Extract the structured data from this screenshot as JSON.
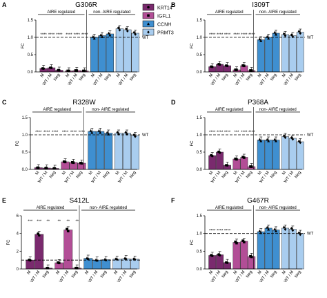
{
  "legend": {
    "items": [
      {
        "label": "KRT14",
        "color": "#7a2a6e",
        "marker": "circle"
      },
      {
        "label": "IGFL1",
        "color": "#b24e96",
        "marker": "square"
      },
      {
        "label": "CCNH",
        "color": "#3f8fd0",
        "marker": "triangle"
      },
      {
        "label": "PRMT3",
        "color": "#a9cdef",
        "marker": "diamond"
      }
    ]
  },
  "chart_data": [
    {
      "panel": "A",
      "title": "G306R",
      "type": "bar",
      "ylabel": "FC",
      "ylim": [
        0,
        1.5
      ],
      "yticks": [
        "0.0",
        "0.5",
        "1.0",
        "1.5"
      ],
      "categories": [
        "M",
        "WT / M",
        "Neg"
      ],
      "ref_line": {
        "y": 1.0,
        "label": "WT"
      },
      "groups": [
        {
          "label": "AIRE regulated",
          "genes": [
            "KRT14",
            "IGFL1"
          ]
        },
        {
          "label": "non- AIRE regulated",
          "genes": [
            "CCNH",
            "PRMT3"
          ]
        }
      ],
      "series": [
        {
          "name": "KRT14",
          "values": [
            0.1,
            0.12,
            0.05
          ]
        },
        {
          "name": "IGFL1",
          "values": [
            0.03,
            0.04,
            0.03
          ]
        },
        {
          "name": "CCNH",
          "values": [
            1.0,
            1.05,
            1.1
          ]
        },
        {
          "name": "PRMT3",
          "values": [
            1.25,
            1.22,
            1.12
          ]
        }
      ],
      "sig": [
        {
          "g": 0,
          "c": 0,
          "text": "****"
        },
        {
          "g": 0,
          "c": 1,
          "text": "****"
        },
        {
          "g": 0,
          "c": 2,
          "text": "****"
        },
        {
          "g": 1,
          "c": 0,
          "text": "****"
        },
        {
          "g": 1,
          "c": 1,
          "text": "****"
        },
        {
          "g": 1,
          "c": 2,
          "text": "****"
        },
        {
          "g": 3,
          "c": 0,
          "text": "*"
        }
      ]
    },
    {
      "panel": "B",
      "title": "I309T",
      "type": "bar",
      "ylabel": "FC",
      "ylim": [
        0,
        1.5
      ],
      "yticks": [
        "0.0",
        "0.5",
        "1.0",
        "1.5"
      ],
      "categories": [
        "M",
        "WT / M",
        "Neg"
      ],
      "ref_line": {
        "y": 1.0,
        "label": "WT"
      },
      "groups": [
        {
          "label": "AIRE regulated",
          "genes": [
            "KRT14",
            "IGFL1"
          ]
        },
        {
          "label": "non- AIRE regulated",
          "genes": [
            "CCNH",
            "PRMT3"
          ]
        }
      ],
      "series": [
        {
          "name": "KRT14",
          "values": [
            0.15,
            0.22,
            0.18
          ]
        },
        {
          "name": "IGFL1",
          "values": [
            0.06,
            0.18,
            0.04
          ]
        },
        {
          "name": "CCNH",
          "values": [
            0.93,
            1.0,
            1.12
          ]
        },
        {
          "name": "PRMT3",
          "values": [
            1.08,
            1.05,
            1.15
          ]
        }
      ],
      "sig": [
        {
          "g": 0,
          "c": 0,
          "text": "****"
        },
        {
          "g": 0,
          "c": 1,
          "text": "****"
        },
        {
          "g": 0,
          "c": 2,
          "text": "****"
        },
        {
          "g": 1,
          "c": 0,
          "text": "****"
        },
        {
          "g": 1,
          "c": 1,
          "text": "****"
        },
        {
          "g": 1,
          "c": 2,
          "text": "****"
        }
      ]
    },
    {
      "panel": "C",
      "title": "R328W",
      "type": "bar",
      "ylabel": "FC",
      "ylim": [
        0,
        1.5
      ],
      "yticks": [
        "0.0",
        "0.5",
        "1.0",
        "1.5"
      ],
      "categories": [
        "M",
        "WT / M",
        "Neg"
      ],
      "ref_line": {
        "y": 1.0,
        "label": "WT"
      },
      "groups": [
        {
          "label": "AIRE regulated",
          "genes": [
            "KRT14",
            "IGFL1"
          ]
        },
        {
          "label": "non- AIRE regulated",
          "genes": [
            "CCNH",
            "PRMT3"
          ]
        }
      ],
      "series": [
        {
          "name": "KRT14",
          "values": [
            0.05,
            0.04,
            0.03
          ]
        },
        {
          "name": "IGFL1",
          "values": [
            0.22,
            0.2,
            0.18
          ]
        },
        {
          "name": "CCNH",
          "values": [
            1.1,
            1.1,
            1.05
          ]
        },
        {
          "name": "PRMT3",
          "values": [
            1.05,
            1.05,
            0.98
          ]
        }
      ],
      "sig": [
        {
          "g": 0,
          "c": 0,
          "text": "****"
        },
        {
          "g": 0,
          "c": 1,
          "text": "****"
        },
        {
          "g": 0,
          "c": 2,
          "text": "****"
        },
        {
          "g": 1,
          "c": 0,
          "text": "****"
        },
        {
          "g": 1,
          "c": 1,
          "text": "****"
        },
        {
          "g": 1,
          "c": 2,
          "text": "****"
        }
      ]
    },
    {
      "panel": "D",
      "title": "P368A",
      "type": "bar",
      "ylabel": "FC",
      "ylim": [
        0,
        1.5
      ],
      "yticks": [
        "0.0",
        "0.5",
        "1.0",
        "1.5"
      ],
      "categories": [
        "M",
        "WT / M",
        "Neg"
      ],
      "ref_line": {
        "y": 1.0,
        "label": "WT"
      },
      "groups": [
        {
          "label": "AIRE regulated",
          "genes": [
            "KRT14",
            "IGFL1"
          ]
        },
        {
          "label": "non- AIRE regulated",
          "genes": [
            "CCNH",
            "PRMT3"
          ]
        }
      ],
      "series": [
        {
          "name": "KRT14",
          "values": [
            0.4,
            0.5,
            0.12
          ]
        },
        {
          "name": "IGFL1",
          "values": [
            0.3,
            0.35,
            0.08
          ]
        },
        {
          "name": "CCNH",
          "values": [
            0.85,
            0.85,
            0.85
          ]
        },
        {
          "name": "PRMT3",
          "values": [
            0.95,
            0.9,
            0.8
          ]
        }
      ],
      "sig": [
        {
          "g": 0,
          "c": 0,
          "text": "****"
        },
        {
          "g": 0,
          "c": 1,
          "text": "****"
        },
        {
          "g": 0,
          "c": 2,
          "text": "****"
        },
        {
          "g": 1,
          "c": 0,
          "text": "***"
        },
        {
          "g": 1,
          "c": 1,
          "text": "****"
        },
        {
          "g": 1,
          "c": 2,
          "text": "****"
        }
      ]
    },
    {
      "panel": "E",
      "title": "S412L",
      "type": "bar",
      "ylabel": "FC",
      "ylim": [
        0,
        6
      ],
      "yticks": [
        "0",
        "2",
        "4",
        "6"
      ],
      "categories": [
        "M",
        "WT / M",
        "Neg"
      ],
      "ref_line": {
        "y": 1.0,
        "label": ""
      },
      "groups": [
        {
          "label": "AIRE regulated",
          "genes": [
            "KRT14",
            "IGFL1"
          ]
        },
        {
          "label": "non- AIRE regulated",
          "genes": [
            "CCNH",
            "PRMT3"
          ]
        }
      ],
      "series": [
        {
          "name": "KRT14",
          "values": [
            1.0,
            3.9,
            0.1
          ]
        },
        {
          "name": "IGFL1",
          "values": [
            0.7,
            4.4,
            0.1
          ]
        },
        {
          "name": "CCNH",
          "values": [
            1.2,
            1.0,
            1.05
          ]
        },
        {
          "name": "PRMT3",
          "values": [
            1.1,
            1.15,
            1.1
          ]
        }
      ],
      "sig": [
        {
          "g": 0,
          "c": 0,
          "text": "***"
        },
        {
          "g": 0,
          "c": 1,
          "text": "***"
        },
        {
          "g": 0,
          "c": 2,
          "text": "**"
        },
        {
          "g": 1,
          "c": 0,
          "text": "**"
        },
        {
          "g": 1,
          "c": 1,
          "text": "**"
        },
        {
          "g": 1,
          "c": 2,
          "text": "**"
        }
      ]
    },
    {
      "panel": "F",
      "title": "G467R",
      "type": "bar",
      "ylabel": "FC",
      "ylim": [
        0,
        1.5
      ],
      "yticks": [
        "0.0",
        "0.5",
        "1.0",
        "1.5"
      ],
      "categories": [
        "M",
        "WT / M",
        "Neg"
      ],
      "ref_line": {
        "y": 1.0,
        "label": "WT"
      },
      "groups": [
        {
          "label": "AIRE regulated",
          "genes": [
            "KRT14",
            "IGFL1"
          ]
        },
        {
          "label": "non- AIRE regulated",
          "genes": [
            "CCNH",
            "PRMT3"
          ]
        }
      ],
      "series": [
        {
          "name": "KRT14",
          "values": [
            0.38,
            0.4,
            0.18
          ]
        },
        {
          "name": "IGFL1",
          "values": [
            0.75,
            0.78,
            0.35
          ]
        },
        {
          "name": "CCNH",
          "values": [
            1.05,
            1.15,
            1.1
          ]
        },
        {
          "name": "PRMT3",
          "values": [
            1.15,
            1.12,
            1.0
          ]
        }
      ],
      "sig": [
        {
          "g": 0,
          "c": 0,
          "text": "****"
        },
        {
          "g": 0,
          "c": 1,
          "text": "****"
        },
        {
          "g": 0,
          "c": 2,
          "text": "****"
        }
      ]
    }
  ]
}
